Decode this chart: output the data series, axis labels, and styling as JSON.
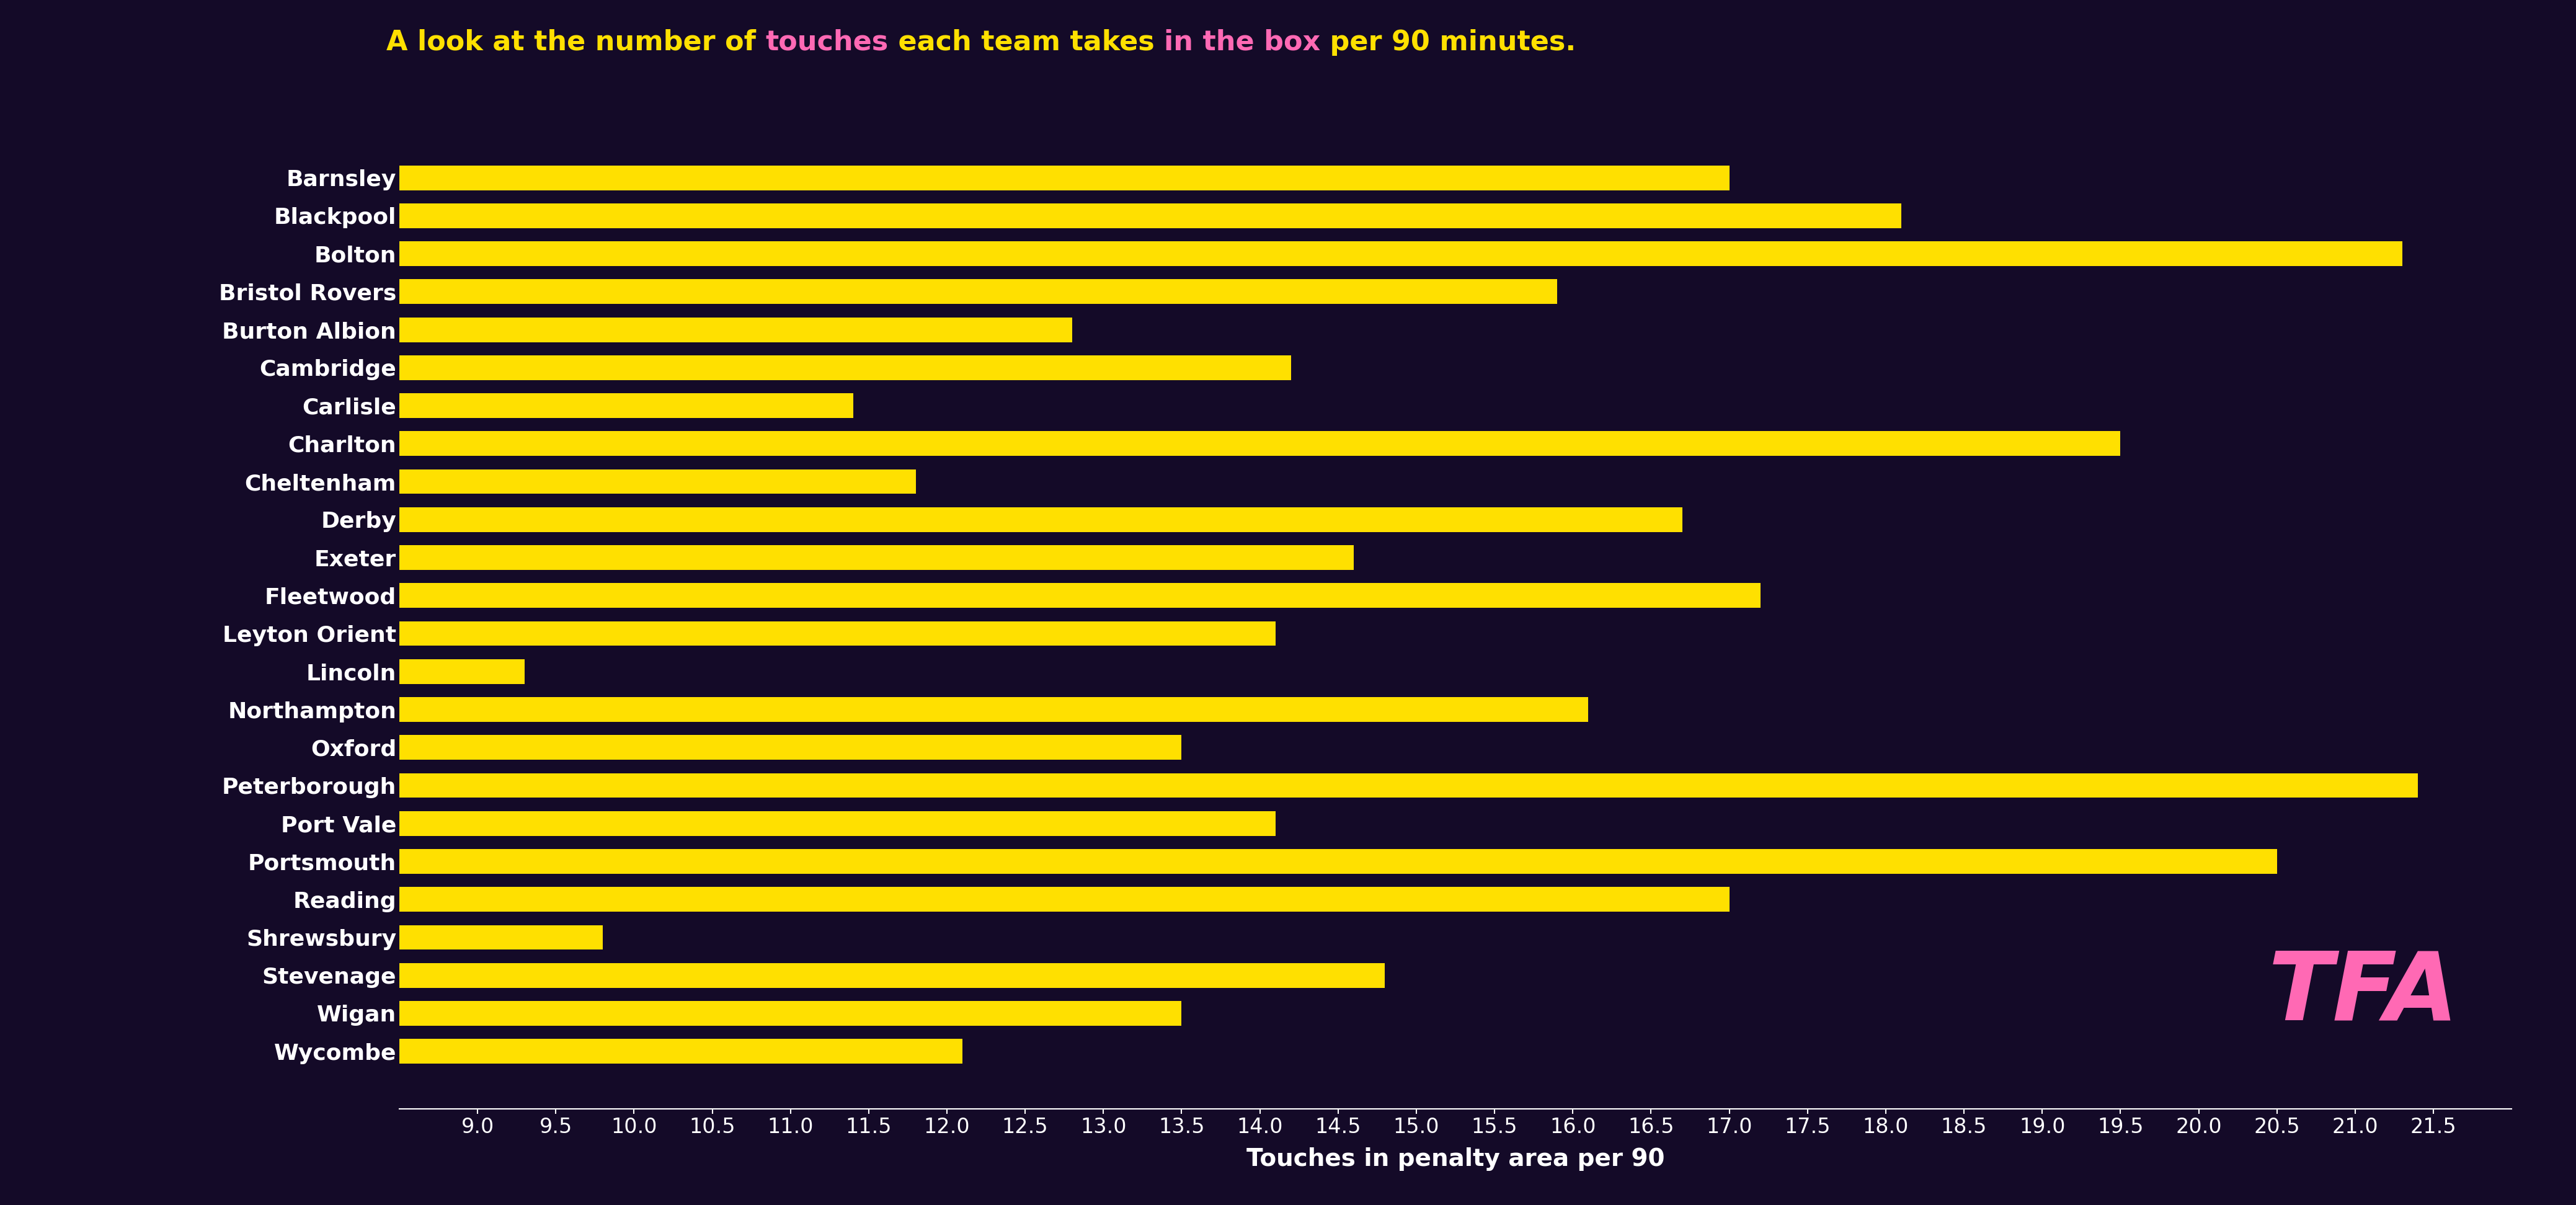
{
  "title_parts": [
    {
      "text": "A look at the number of ",
      "color": "#FFE000"
    },
    {
      "text": "touches",
      "color": "#FF69B4"
    },
    {
      "text": " each team takes ",
      "color": "#FFE000"
    },
    {
      "text": "in the box",
      "color": "#FF69B4"
    },
    {
      "text": " per 90 minutes.",
      "color": "#FFE000"
    }
  ],
  "teams": [
    "Barnsley",
    "Blackpool",
    "Bolton",
    "Bristol Rovers",
    "Burton Albion",
    "Cambridge",
    "Carlisle",
    "Charlton",
    "Cheltenham",
    "Derby",
    "Exeter",
    "Fleetwood",
    "Leyton Orient",
    "Lincoln",
    "Northampton",
    "Oxford",
    "Peterborough",
    "Port Vale",
    "Portsmouth",
    "Reading",
    "Shrewsbury",
    "Stevenage",
    "Wigan",
    "Wycombe"
  ],
  "values": [
    17.0,
    18.1,
    21.3,
    15.9,
    12.8,
    14.2,
    11.4,
    19.5,
    11.8,
    16.7,
    14.6,
    17.2,
    14.1,
    9.3,
    16.1,
    13.5,
    21.4,
    14.1,
    20.5,
    17.0,
    9.8,
    14.8,
    13.5,
    12.1
  ],
  "bar_color": "#FFE000",
  "bg_color": "#140a28",
  "text_color": "#FFFFFF",
  "xlabel": "Touches in penalty area per 90",
  "xlim_min": 8.5,
  "xlim_max": 22.0,
  "xticks": [
    9.0,
    9.5,
    10.0,
    10.5,
    11.0,
    11.5,
    12.0,
    12.5,
    13.0,
    13.5,
    14.0,
    14.5,
    15.0,
    15.5,
    16.0,
    16.5,
    17.0,
    17.5,
    18.0,
    18.5,
    19.0,
    19.5,
    20.0,
    20.5,
    21.0,
    21.5
  ],
  "logo_text": "TFA",
  "logo_color": "#FF69B4",
  "title_fontsize": 32,
  "label_fontsize": 26,
  "tick_fontsize": 24,
  "xlabel_fontsize": 28,
  "bar_height": 0.65
}
